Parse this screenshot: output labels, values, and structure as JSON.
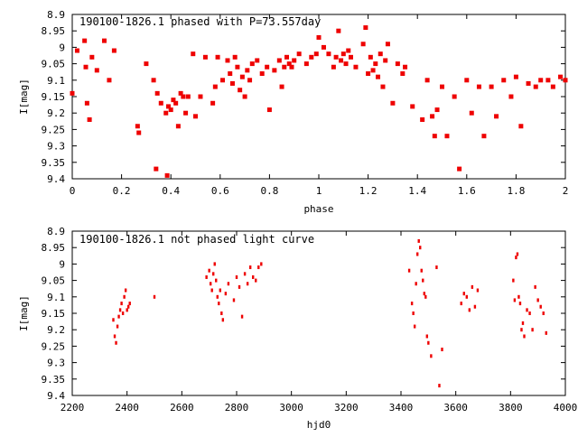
{
  "chart_data": [
    {
      "type": "scatter",
      "title": "190100-1826.1 phased with P=73.557day",
      "xlabel": "phase",
      "ylabel": "I[mag]",
      "xlim": [
        0,
        2
      ],
      "ylim": [
        9.4,
        8.9
      ],
      "y_inverted": true,
      "grid": false,
      "xticks": [
        "0",
        "0.2",
        "0.4",
        "0.6",
        "0.8",
        "1",
        "1.2",
        "1.4",
        "1.6",
        "1.8",
        "2"
      ],
      "yticks": [
        "8.9",
        "8.95",
        "9",
        "9.05",
        "9.1",
        "9.15",
        "9.2",
        "9.25",
        "9.3",
        "9.35",
        "9.4"
      ],
      "marker_color": "#ee0000",
      "series": [
        {
          "x": [
            0.0,
            0.02,
            0.05,
            0.055,
            0.06,
            0.07,
            0.08,
            0.1,
            0.13,
            0.15,
            0.17,
            0.265,
            0.27,
            0.3,
            0.33,
            0.34,
            0.345,
            0.36,
            0.38,
            0.385,
            0.39,
            0.4,
            0.41,
            0.42,
            0.43,
            0.44,
            0.45,
            0.46,
            0.47,
            0.49,
            0.5,
            0.52,
            0.54,
            0.57,
            0.58,
            0.59,
            0.61,
            0.63,
            0.64,
            0.65,
            0.66,
            0.67,
            0.68,
            0.69,
            0.7,
            0.71,
            0.72,
            0.73,
            0.75,
            0.77,
            0.79,
            0.8,
            0.82,
            0.84,
            0.85,
            0.86,
            0.87,
            0.88,
            0.89,
            0.9,
            0.92,
            0.95,
            0.97,
            0.99,
            1.0,
            1.02,
            1.04,
            1.06,
            1.07,
            1.08,
            1.09,
            1.1,
            1.11,
            1.12,
            1.13,
            1.15,
            1.18,
            1.19,
            1.2,
            1.21,
            1.22,
            1.23,
            1.24,
            1.25,
            1.26,
            1.27,
            1.28,
            1.3,
            1.32,
            1.34,
            1.35,
            1.38,
            1.42,
            1.44,
            1.46,
            1.47,
            1.48,
            1.5,
            1.52,
            1.55,
            1.57,
            1.6,
            1.62,
            1.65,
            1.67,
            1.7,
            1.72,
            1.75,
            1.78,
            1.8,
            1.82,
            1.85,
            1.88,
            1.9,
            1.93,
            1.95,
            1.98,
            2.0
          ],
          "y": [
            9.14,
            9.01,
            8.98,
            9.06,
            9.17,
            9.22,
            9.03,
            9.07,
            8.98,
            9.1,
            9.01,
            9.24,
            9.26,
            9.05,
            9.1,
            9.37,
            9.14,
            9.17,
            9.2,
            9.39,
            9.18,
            9.19,
            9.16,
            9.17,
            9.24,
            9.14,
            9.15,
            9.2,
            9.15,
            9.02,
            9.21,
            9.15,
            9.03,
            9.17,
            9.12,
            9.03,
            9.1,
            9.04,
            9.08,
            9.11,
            9.03,
            9.06,
            9.13,
            9.09,
            9.15,
            9.07,
            9.1,
            9.05,
            9.04,
            9.08,
            9.06,
            9.19,
            9.07,
            9.04,
            9.12,
            9.06,
            9.03,
            9.05,
            9.06,
            9.04,
            9.02,
            9.05,
            9.03,
            9.02,
            8.97,
            9.0,
            9.02,
            9.06,
            9.03,
            8.95,
            9.04,
            9.02,
            9.05,
            9.01,
            9.03,
            9.06,
            8.99,
            8.94,
            9.08,
            9.03,
            9.07,
            9.05,
            9.09,
            9.02,
            9.12,
            9.04,
            8.99,
            9.17,
            9.05,
            9.08,
            9.06,
            9.18,
            9.22,
            9.1,
            9.21,
            9.27,
            9.19,
            9.12,
            9.27,
            9.15,
            9.37,
            9.1,
            9.2,
            9.12,
            9.27,
            9.12,
            9.21,
            9.1,
            9.15,
            9.09,
            9.24,
            9.11,
            9.12,
            9.1,
            9.1,
            9.12,
            9.09,
            9.1
          ]
        }
      ]
    },
    {
      "type": "scatter",
      "title": "190100-1826.1 not phased light curve",
      "xlabel": "hjd0",
      "ylabel": "I[mag]",
      "xlim": [
        2200,
        4000
      ],
      "ylim": [
        9.4,
        8.9
      ],
      "y_inverted": true,
      "grid": false,
      "xticks": [
        "2200",
        "2400",
        "2600",
        "2800",
        "3000",
        "3200",
        "3400",
        "3600",
        "3800",
        "4000"
      ],
      "yticks": [
        "8.9",
        "8.95",
        "9",
        "9.05",
        "9.1",
        "9.15",
        "9.2",
        "9.25",
        "9.3",
        "9.35",
        "9.4"
      ],
      "marker_color": "#ee0000",
      "series": [
        {
          "x": [
            2350,
            2355,
            2360,
            2365,
            2370,
            2375,
            2380,
            2385,
            2390,
            2395,
            2400,
            2405,
            2410,
            2500,
            2690,
            2700,
            2705,
            2710,
            2715,
            2720,
            2725,
            2730,
            2735,
            2740,
            2745,
            2750,
            2760,
            2770,
            2790,
            2800,
            2810,
            2820,
            2830,
            2840,
            2850,
            2860,
            2870,
            2880,
            2890,
            3430,
            3440,
            3445,
            3450,
            3455,
            3460,
            3465,
            3470,
            3475,
            3480,
            3485,
            3490,
            3495,
            3500,
            3510,
            3530,
            3540,
            3550,
            3620,
            3630,
            3640,
            3650,
            3660,
            3670,
            3680,
            3810,
            3815,
            3820,
            3825,
            3830,
            3835,
            3840,
            3845,
            3850,
            3860,
            3870,
            3880,
            3890,
            3900,
            3910,
            3920,
            3930
          ],
          "y": [
            9.17,
            9.22,
            9.24,
            9.19,
            9.16,
            9.14,
            9.12,
            9.15,
            9.1,
            9.08,
            9.14,
            9.13,
            9.12,
            9.1,
            9.04,
            9.02,
            9.06,
            9.08,
            9.03,
            9.0,
            9.05,
            9.1,
            9.12,
            9.08,
            9.15,
            9.17,
            9.09,
            9.06,
            9.11,
            9.04,
            9.07,
            9.16,
            9.03,
            9.06,
            9.01,
            9.04,
            9.05,
            9.01,
            9.0,
            9.02,
            9.12,
            9.15,
            9.19,
            9.06,
            8.97,
            8.93,
            8.95,
            9.02,
            9.05,
            9.09,
            9.1,
            9.22,
            9.24,
            9.28,
            9.01,
            9.37,
            9.26,
            9.12,
            9.09,
            9.1,
            9.14,
            9.07,
            9.13,
            9.08,
            9.05,
            9.11,
            8.98,
            8.97,
            9.1,
            9.12,
            9.2,
            9.18,
            9.22,
            9.14,
            9.15,
            9.2,
            9.07,
            9.11,
            9.13,
            9.15,
            9.21
          ]
        }
      ]
    }
  ]
}
